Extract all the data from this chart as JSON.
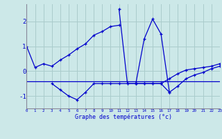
{
  "xlabel": "Graphe des températures (°c)",
  "bg_color": "#cce8e8",
  "line_color": "#0000cc",
  "grid_color": "#aacccc",
  "x_ticks": [
    0,
    1,
    2,
    3,
    4,
    5,
    6,
    7,
    8,
    9,
    10,
    11,
    12,
    13,
    14,
    15,
    16,
    17,
    18,
    19,
    20,
    21,
    22,
    23
  ],
  "y_ticks": [
    -1,
    0,
    1,
    2
  ],
  "xlim": [
    0,
    23
  ],
  "ylim": [
    -1.5,
    2.7
  ],
  "series": [
    {
      "x": [
        0,
        1,
        2,
        3,
        4,
        5,
        6,
        7,
        8,
        9,
        10,
        11
      ],
      "y": [
        1.0,
        0.15,
        0.3,
        0.2,
        0.45,
        0.65,
        0.9,
        1.1,
        1.45,
        1.6,
        1.8,
        1.85
      ],
      "marker": true
    },
    {
      "x": [
        11,
        12,
        13
      ],
      "y": [
        2.5,
        -0.5,
        -0.5
      ],
      "marker": true
    },
    {
      "comment": "second peak: 13->-0.5, 14->1.3, 15->2.1, 16->1.5, 17->-0.85",
      "x": [
        13,
        14,
        15,
        16,
        17
      ],
      "y": [
        -0.5,
        1.3,
        2.1,
        1.5,
        -0.85
      ],
      "marker": true
    },
    {
      "x": [
        0,
        23
      ],
      "y": [
        -0.4,
        -0.4
      ],
      "marker": false
    },
    {
      "comment": "lower dip line: 3->-0.5, 4->-0.75, 5->-1.0, 6->-1.15, 7->-0.85, 8->-0.5, 9->-0.5, 10->-0.5",
      "x": [
        3,
        4,
        5,
        6,
        7,
        8,
        9,
        10,
        11,
        12,
        13
      ],
      "y": [
        -0.5,
        -0.75,
        -1.0,
        -1.15,
        -0.85,
        -0.5,
        -0.5,
        -0.5,
        -0.5,
        -0.5,
        -0.5
      ],
      "marker": true
    },
    {
      "x": [
        13,
        14,
        15,
        16,
        17,
        18,
        19,
        20,
        21,
        22,
        23
      ],
      "y": [
        -0.5,
        -0.5,
        -0.5,
        -0.5,
        -0.85,
        -0.6,
        -0.3,
        -0.15,
        -0.05,
        0.1,
        0.2
      ],
      "marker": true
    },
    {
      "x": [
        13,
        14,
        15,
        16,
        17,
        18,
        19,
        20,
        21,
        22,
        23
      ],
      "y": [
        -0.5,
        -0.5,
        -0.5,
        -0.5,
        -0.3,
        -0.1,
        0.05,
        0.1,
        0.15,
        0.2,
        0.3
      ],
      "marker": true
    }
  ]
}
